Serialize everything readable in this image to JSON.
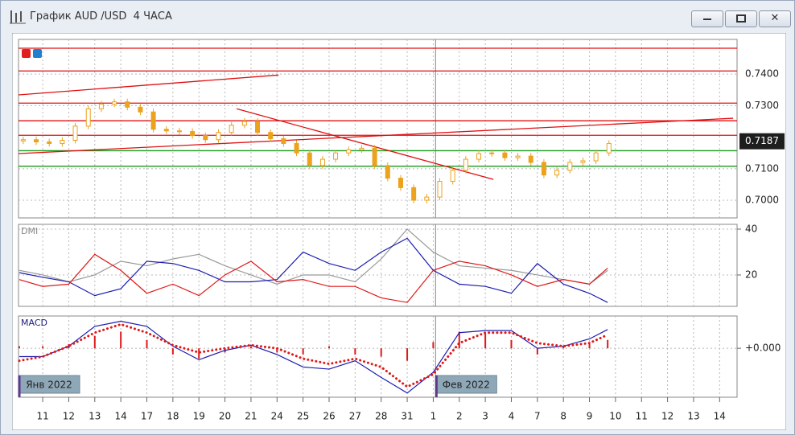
{
  "window": {
    "title": "График AUD /USD  4 ЧАСА"
  },
  "chart_data": [
    {
      "type": "candlestick",
      "color": "#eba21c",
      "xlim": [
        -0.93,
        26.67
      ],
      "ylim": [
        0.6944,
        0.751
      ],
      "yticks": [
        {
          "value": 0.74,
          "label": "0.7400"
        },
        {
          "value": 0.73,
          "label": "0.7300"
        },
        {
          "value": 0.71,
          "label": "0.7100"
        },
        {
          "value": 0.7,
          "label": "0.7000"
        }
      ],
      "last_price": 0.7187,
      "x": [
        -0.75,
        -0.25,
        0.25,
        0.75,
        1.25,
        1.75,
        2.25,
        2.75,
        3.25,
        3.75,
        4.25,
        4.75,
        5.25,
        5.75,
        6.25,
        6.75,
        7.25,
        7.75,
        8.25,
        8.75,
        9.25,
        9.75,
        10.25,
        10.75,
        11.25,
        11.75,
        12.25,
        12.75,
        13.25,
        13.75,
        14.25,
        14.75,
        15.25,
        15.75,
        16.25,
        16.75,
        17.25,
        17.75,
        18.25,
        18.75,
        19.25,
        19.75,
        20.25,
        20.75,
        21.25,
        21.75
      ],
      "open": [
        0.7188,
        0.7192,
        0.7185,
        0.718,
        0.719,
        0.7235,
        0.729,
        0.7305,
        0.7312,
        0.7295,
        0.728,
        0.7225,
        0.722,
        0.7218,
        0.7205,
        0.7192,
        0.7215,
        0.7238,
        0.725,
        0.7215,
        0.7195,
        0.718,
        0.715,
        0.711,
        0.713,
        0.715,
        0.716,
        0.7165,
        0.711,
        0.707,
        0.704,
        0.7,
        0.701,
        0.706,
        0.7095,
        0.713,
        0.7148,
        0.715,
        0.7135,
        0.714,
        0.712,
        0.708,
        0.7095,
        0.712,
        0.7125,
        0.715
      ],
      "high": [
        0.7202,
        0.7202,
        0.7195,
        0.72,
        0.7245,
        0.73,
        0.7315,
        0.7322,
        0.7322,
        0.7305,
        0.729,
        0.7235,
        0.723,
        0.7228,
        0.7215,
        0.7225,
        0.7248,
        0.726,
        0.726,
        0.7225,
        0.7205,
        0.719,
        0.716,
        0.714,
        0.716,
        0.717,
        0.7175,
        0.7175,
        0.712,
        0.708,
        0.705,
        0.702,
        0.707,
        0.7105,
        0.714,
        0.7158,
        0.716,
        0.716,
        0.715,
        0.715,
        0.713,
        0.7105,
        0.713,
        0.7135,
        0.716,
        0.719
      ],
      "low": [
        0.7178,
        0.7175,
        0.717,
        0.717,
        0.718,
        0.7225,
        0.728,
        0.7295,
        0.7285,
        0.727,
        0.7215,
        0.721,
        0.7208,
        0.7195,
        0.7182,
        0.7182,
        0.7205,
        0.7228,
        0.7205,
        0.7185,
        0.717,
        0.714,
        0.71,
        0.71,
        0.712,
        0.714,
        0.715,
        0.71,
        0.706,
        0.703,
        0.699,
        0.699,
        0.7,
        0.705,
        0.7085,
        0.712,
        0.7138,
        0.7125,
        0.7125,
        0.711,
        0.707,
        0.707,
        0.7085,
        0.711,
        0.7115,
        0.714
      ],
      "close": [
        0.7192,
        0.7185,
        0.718,
        0.719,
        0.7235,
        0.729,
        0.7305,
        0.7312,
        0.7295,
        0.728,
        0.7225,
        0.722,
        0.7218,
        0.7205,
        0.7192,
        0.7215,
        0.7238,
        0.725,
        0.7215,
        0.7195,
        0.718,
        0.715,
        0.711,
        0.713,
        0.715,
        0.716,
        0.7165,
        0.711,
        0.707,
        0.704,
        0.7,
        0.701,
        0.706,
        0.7095,
        0.713,
        0.7148,
        0.715,
        0.7135,
        0.714,
        0.712,
        0.708,
        0.7095,
        0.712,
        0.7125,
        0.715,
        0.718
      ],
      "hlines": [
        {
          "value": 0.7482,
          "color": "#e01010"
        },
        {
          "value": 0.741,
          "color": "#e01010"
        },
        {
          "value": 0.7308,
          "color": "#e01010"
        },
        {
          "value": 0.7252,
          "color": "#e01010"
        },
        {
          "value": 0.7206,
          "color": "#e01010"
        },
        {
          "value": 0.7157,
          "color": "#1a9a1a"
        },
        {
          "value": 0.7108,
          "color": "#1a9a1a"
        }
      ],
      "trendlines": [
        {
          "x": [
            -0.93,
            9.06
          ],
          "y": [
            0.7334,
            0.7397
          ],
          "color": "#e01010"
        },
        {
          "x": [
            -0.93,
            26.52
          ],
          "y": [
            0.7148,
            0.726
          ],
          "color": "#e01010"
        },
        {
          "x": [
            7.45,
            17.31
          ],
          "y": [
            0.729,
            0.7066
          ],
          "color": "#e01010"
        }
      ]
    },
    {
      "type": "line",
      "title": "DMI",
      "xlim": [
        -0.93,
        26.67
      ],
      "ylim": [
        6.3,
        42.1
      ],
      "yticks": [
        20,
        40
      ],
      "x": [
        -0.9,
        0,
        1,
        2,
        3,
        4,
        5,
        6,
        7,
        8,
        9,
        10,
        11,
        12,
        13,
        14,
        15,
        16,
        17,
        18,
        19,
        20,
        21,
        21.7
      ],
      "series": [
        {
          "color": "#999999",
          "values": [
            22,
            20,
            17,
            20,
            26,
            24,
            27,
            29,
            24,
            20,
            16,
            20,
            20,
            17,
            27,
            40,
            30,
            24,
            23,
            22,
            20,
            18,
            16,
            22
          ]
        },
        {
          "color": "#1c1cb0",
          "values": [
            21,
            19,
            17,
            11,
            14,
            26,
            25,
            22,
            17,
            17,
            18,
            30,
            25,
            22,
            30,
            36,
            22,
            16,
            15,
            12,
            25,
            16,
            12,
            8
          ]
        },
        {
          "color": "#e01818",
          "values": [
            18,
            15,
            16,
            29,
            22,
            12,
            16,
            11,
            20,
            26,
            17,
            18,
            15,
            15,
            10,
            8,
            22,
            26,
            24,
            20,
            15,
            18,
            16,
            23
          ]
        }
      ]
    },
    {
      "type": "line",
      "title": "MACD",
      "xlim": [
        -0.93,
        26.67
      ],
      "ylim": [
        -0.0047,
        0.0031
      ],
      "yticks": [
        {
          "value": 0,
          "label": "+0.000"
        }
      ],
      "xticks": [
        {
          "value": 0,
          "label": "11"
        },
        {
          "value": 1,
          "label": "12"
        },
        {
          "value": 2,
          "label": "13"
        },
        {
          "value": 3,
          "label": "14"
        },
        {
          "value": 4,
          "label": "17"
        },
        {
          "value": 5,
          "label": "18"
        },
        {
          "value": 6,
          "label": "19"
        },
        {
          "value": 7,
          "label": "20"
        },
        {
          "value": 8,
          "label": "21"
        },
        {
          "value": 9,
          "label": "24"
        },
        {
          "value": 10,
          "label": "25"
        },
        {
          "value": 11,
          "label": "26"
        },
        {
          "value": 12,
          "label": "27"
        },
        {
          "value": 13,
          "label": "28"
        },
        {
          "value": 14,
          "label": "31"
        },
        {
          "value": 15,
          "label": "1"
        },
        {
          "value": 16,
          "label": "2"
        },
        {
          "value": 17,
          "label": "3"
        },
        {
          "value": 18,
          "label": "4"
        },
        {
          "value": 19,
          "label": "7"
        },
        {
          "value": 20,
          "label": "8"
        },
        {
          "value": 21,
          "label": "9"
        },
        {
          "value": 22,
          "label": "10"
        },
        {
          "value": 23,
          "label": "11"
        },
        {
          "value": 24,
          "label": "12"
        },
        {
          "value": 25,
          "label": "13"
        },
        {
          "value": 26,
          "label": "14"
        }
      ],
      "period_labels": [
        {
          "x": -0.93,
          "label": "Янв 2022"
        },
        {
          "x": 15.09,
          "label": "Фев 2022"
        }
      ],
      "x": [
        -0.9,
        0,
        1,
        2,
        3,
        4,
        5,
        6,
        7,
        8,
        9,
        10,
        11,
        12,
        13,
        14,
        15,
        16,
        17,
        18,
        19,
        20,
        21,
        21.7
      ],
      "series": [
        {
          "type": "bar",
          "color": "#e01818",
          "values": [
            0.0002,
            0.0002,
            0.0004,
            0.0012,
            0.0016,
            0.0008,
            -0.0006,
            -0.001,
            -0.0004,
            0.0002,
            -0.0004,
            -0.0006,
            0.0002,
            -0.0006,
            -0.0008,
            -0.0012,
            0.0006,
            0.0016,
            0.0014,
            0.0008,
            -0.0006,
            0.0002,
            0.0006,
            0.0008
          ]
        },
        {
          "color": "#1c1cb0",
          "values": [
            -0.0008,
            -0.0008,
            0.0002,
            0.0021,
            0.0026,
            0.0021,
            0.0002,
            -0.0011,
            -0.0002,
            0.0003,
            -0.0006,
            -0.0018,
            -0.002,
            -0.0012,
            -0.0028,
            -0.0043,
            -0.0023,
            0.0015,
            0.0017,
            0.0017,
            0,
            0.0002,
            0.0009,
            0.0018
          ]
        },
        {
          "color": "#e01818",
          "style": "dotted",
          "values": [
            -0.0012,
            -0.0008,
            0.0002,
            0.0015,
            0.0023,
            0.0015,
            0.0003,
            -0.0004,
            0,
            0.0003,
            0,
            -0.001,
            -0.0015,
            -0.001,
            -0.0018,
            -0.0037,
            -0.0025,
            0.0005,
            0.0015,
            0.0015,
            0.0005,
            0.0002,
            0.0005,
            0.0013
          ]
        }
      ]
    }
  ]
}
